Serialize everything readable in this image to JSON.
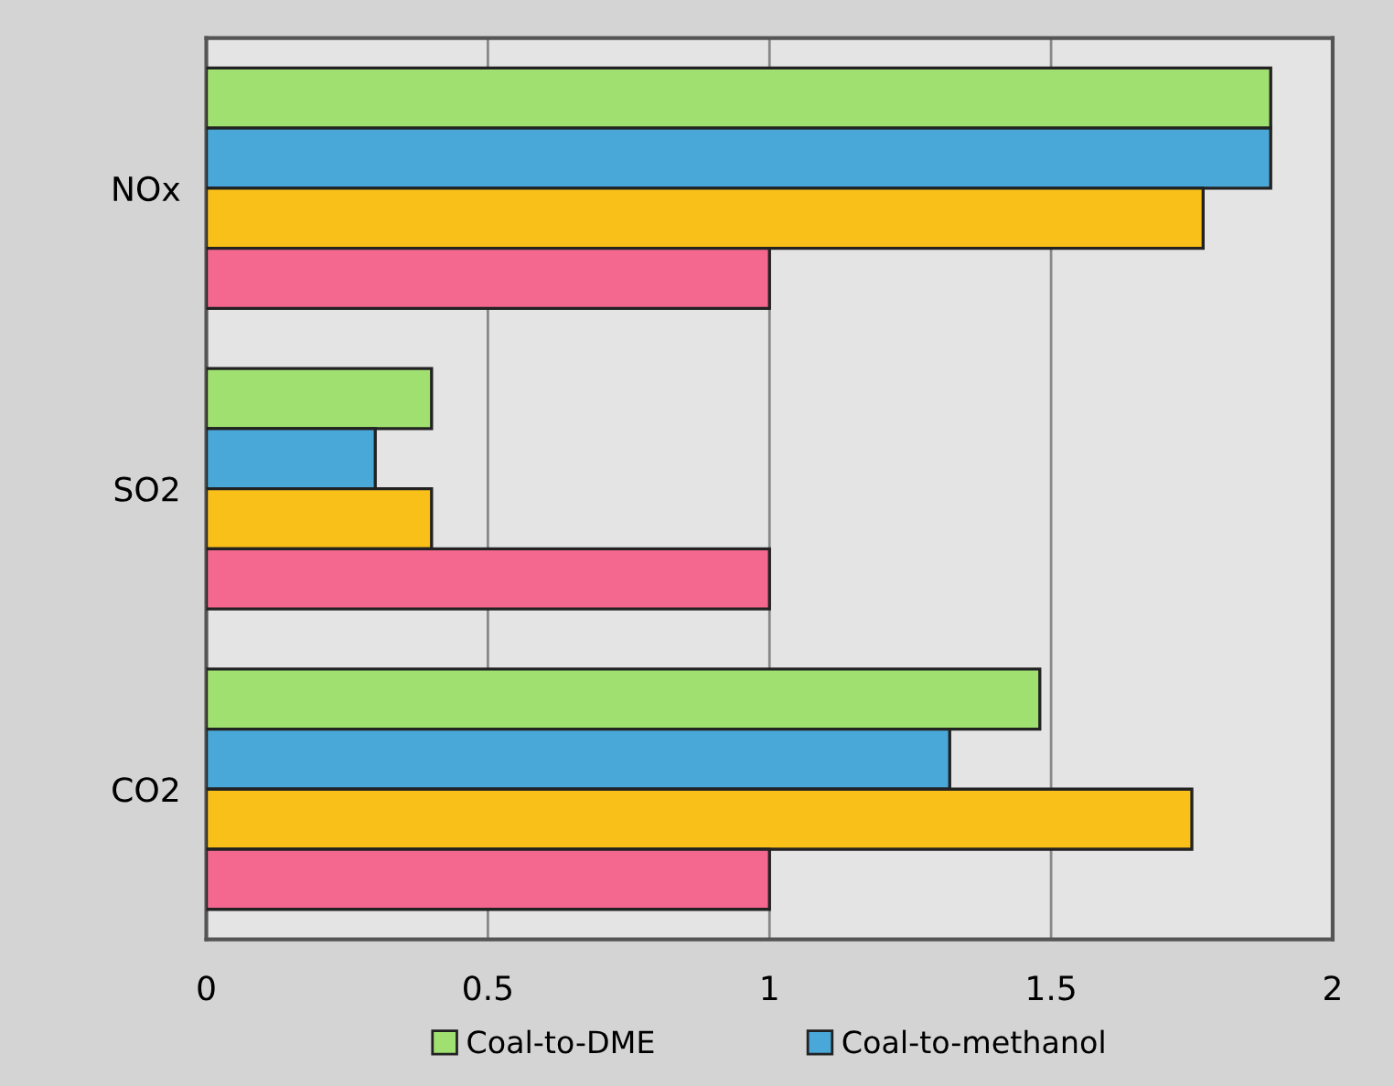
{
  "chart_data": {
    "type": "bar",
    "orientation": "horizontal",
    "categories": [
      "NOx",
      "SO2",
      "CO2"
    ],
    "series": [
      {
        "name": "Coal-to-DME",
        "color": "#a0e070",
        "values": [
          1.89,
          0.4,
          1.48
        ]
      },
      {
        "name": "Coal-to-methanol",
        "color": "#4aa8d8",
        "values": [
          1.89,
          0.3,
          1.32
        ]
      },
      {
        "color": "#f8c018",
        "values": [
          1.77,
          0.4,
          1.75
        ]
      },
      {
        "color": "#f46890",
        "values": [
          1.0,
          1.0,
          1.0
        ]
      }
    ],
    "xlim": [
      0,
      2
    ],
    "xticks": [
      0,
      0.5,
      1,
      1.5,
      2
    ],
    "grid": "x",
    "legend": "bottom"
  }
}
